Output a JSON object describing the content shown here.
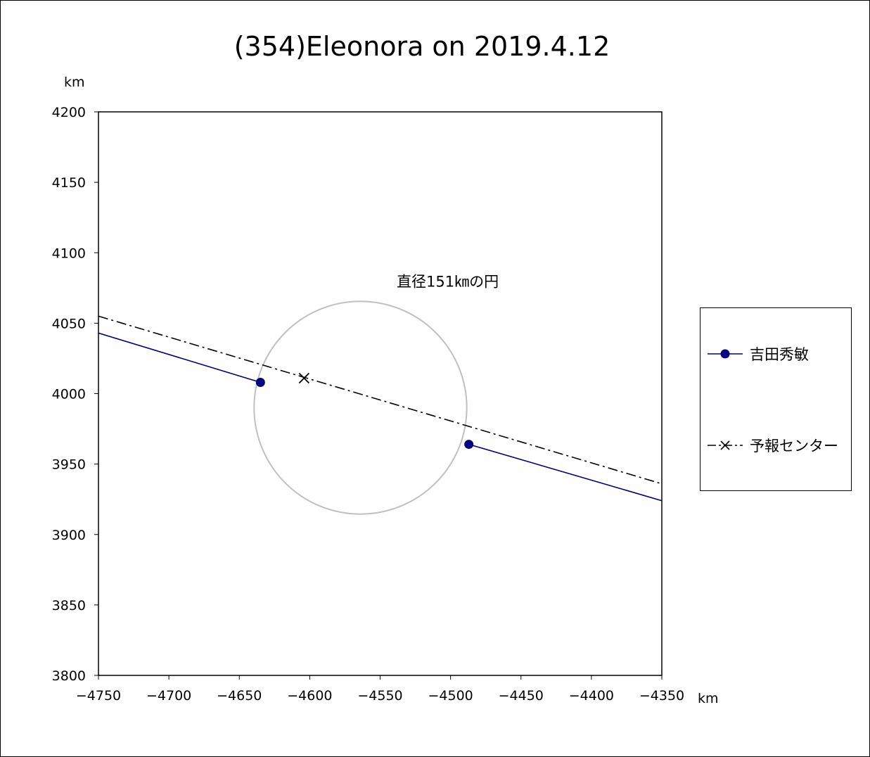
{
  "chart_data": {
    "type": "scatter",
    "title": "(354)Eleonora on 2019.4.12",
    "xlabel": "km",
    "ylabel": "km",
    "xlim": [
      -4750,
      -4350
    ],
    "ylim": [
      3800,
      4200
    ],
    "xticks": [
      -4750,
      -4700,
      -4650,
      -4600,
      -4550,
      -4500,
      -4450,
      -4400,
      -4350
    ],
    "yticks": [
      3800,
      3850,
      3900,
      3950,
      4000,
      4050,
      4100,
      4150,
      4200
    ],
    "xtick_labels": [
      "−4750",
      "−4700",
      "−4650",
      "−4600",
      "−4550",
      "−4500",
      "−4450",
      "−4400",
      "−4350"
    ],
    "ytick_labels": [
      "3800",
      "3850",
      "3900",
      "3950",
      "4000",
      "4050",
      "4100",
      "4150",
      "4200"
    ],
    "grid": false,
    "legend_position": "right",
    "series": [
      {
        "name": "吉田秀敏",
        "color": "#000080",
        "marker": "circle",
        "line_style": "solid",
        "segments": [
          [
            [
              -4750,
              4043
            ],
            [
              -4635,
              4008
            ]
          ],
          [
            [
              -4487,
              3964
            ],
            [
              -4350,
              3924
            ]
          ]
        ],
        "points": [
          [
            -4635,
            4008
          ],
          [
            -4487,
            3964
          ]
        ]
      },
      {
        "name": "予報センター",
        "color": "#000000",
        "marker": "x",
        "line_style": "dashdot",
        "line": [
          [
            -4750,
            4055
          ],
          [
            -4350,
            3936
          ]
        ],
        "points": [
          [
            -4604,
            4011
          ]
        ]
      }
    ],
    "circle": {
      "center": [
        -4564,
        3990
      ],
      "diameter": 151,
      "color": "#c0c0c0",
      "label": "直径151㎞の円",
      "label_position": [
        -4502,
        4076
      ]
    }
  }
}
